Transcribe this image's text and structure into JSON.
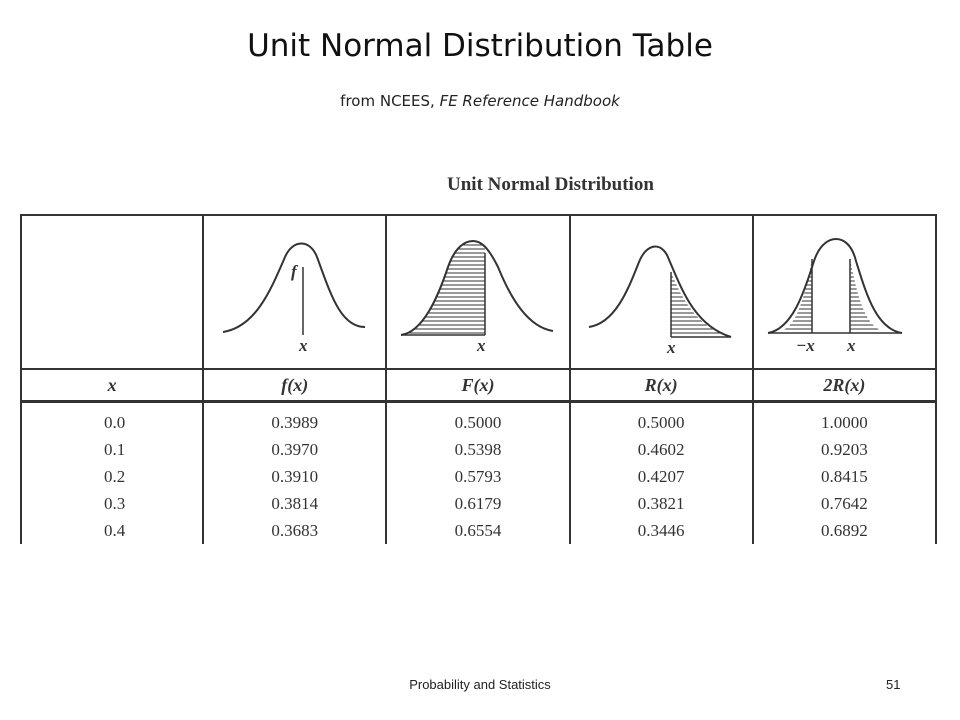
{
  "slide": {
    "title": "Unit Normal Distribution Table",
    "subtitle_prefix": "from NCEES, ",
    "subtitle_italic": "FE Reference Handbook"
  },
  "table": {
    "heading": "Unit Normal Distribution",
    "curve_labels": {
      "f_label": "f",
      "x_label": "x",
      "neg_x_label": "−x"
    },
    "columns": [
      "x",
      "f(x)",
      "F(x)",
      "R(x)",
      "2R(x)"
    ],
    "rows": [
      [
        "0.0",
        "0.3989",
        "0.5000",
        "0.5000",
        "1.0000"
      ],
      [
        "0.1",
        "0.3970",
        "0.5398",
        "0.4602",
        "0.9203"
      ],
      [
        "0.2",
        "0.3910",
        "0.5793",
        "0.4207",
        "0.8415"
      ],
      [
        "0.3",
        "0.3814",
        "0.6179",
        "0.3821",
        "0.7642"
      ],
      [
        "0.4",
        "0.3683",
        "0.6554",
        "0.3446",
        "0.6892"
      ]
    ]
  },
  "footer": {
    "course": "Probability and Statistics",
    "page_number": "51"
  }
}
